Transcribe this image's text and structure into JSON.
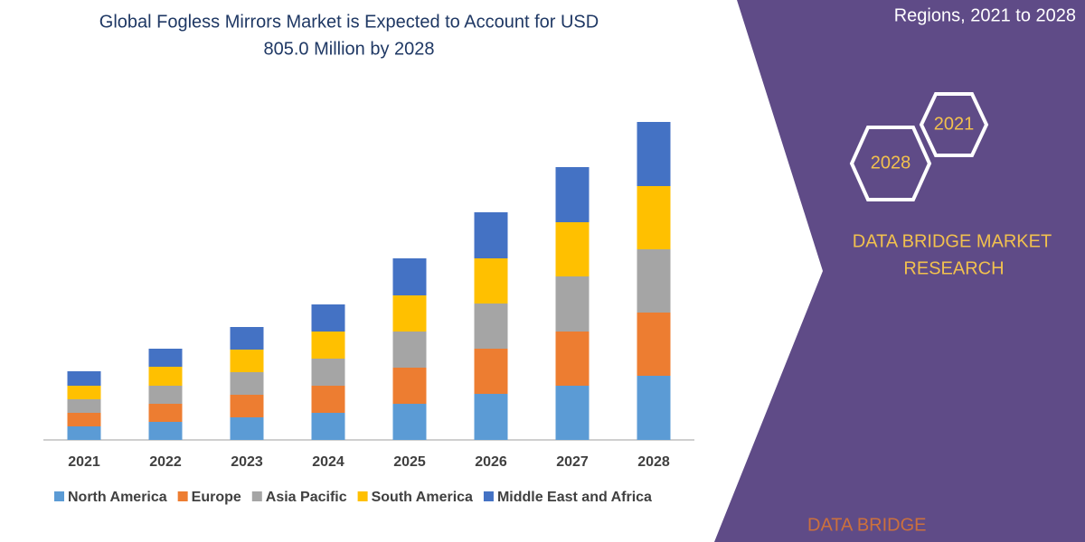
{
  "chart_data": {
    "type": "stacked-bar",
    "title_lines": [
      "Global Fogless Mirrors Market is Expected to Account for USD",
      "805.0 Million by 2028"
    ],
    "categories": [
      "2021",
      "2022",
      "2023",
      "2024",
      "2025",
      "2026",
      "2027",
      "2028"
    ],
    "series": [
      {
        "name": "North America",
        "color": "#5b9bd5",
        "values": [
          15,
          20,
          25,
          30,
          40,
          51,
          60,
          71
        ]
      },
      {
        "name": "Europe",
        "color": "#ed7d31",
        "values": [
          15,
          20,
          25,
          30,
          40,
          50,
          60,
          70
        ]
      },
      {
        "name": "Asia Pacific",
        "color": "#a5a5a5",
        "values": [
          15,
          20,
          25,
          30,
          40,
          50,
          61,
          70
        ]
      },
      {
        "name": "South America",
        "color": "#ffc000",
        "values": [
          15,
          21,
          25,
          30,
          40,
          50,
          60,
          70
        ]
      },
      {
        "name": "Middle East and Africa",
        "color": "#4472c4",
        "values": [
          16,
          20,
          25,
          30,
          41,
          51,
          61,
          71
        ]
      }
    ]
  },
  "side_panel": {
    "subtitle": "Regions, 2021 to 2028",
    "badges": [
      "2021",
      "2028"
    ],
    "brand_lines": [
      "DATA BRIDGE MARKET",
      "RESEARCH"
    ],
    "logo_text": "DATA BRIDGE"
  }
}
